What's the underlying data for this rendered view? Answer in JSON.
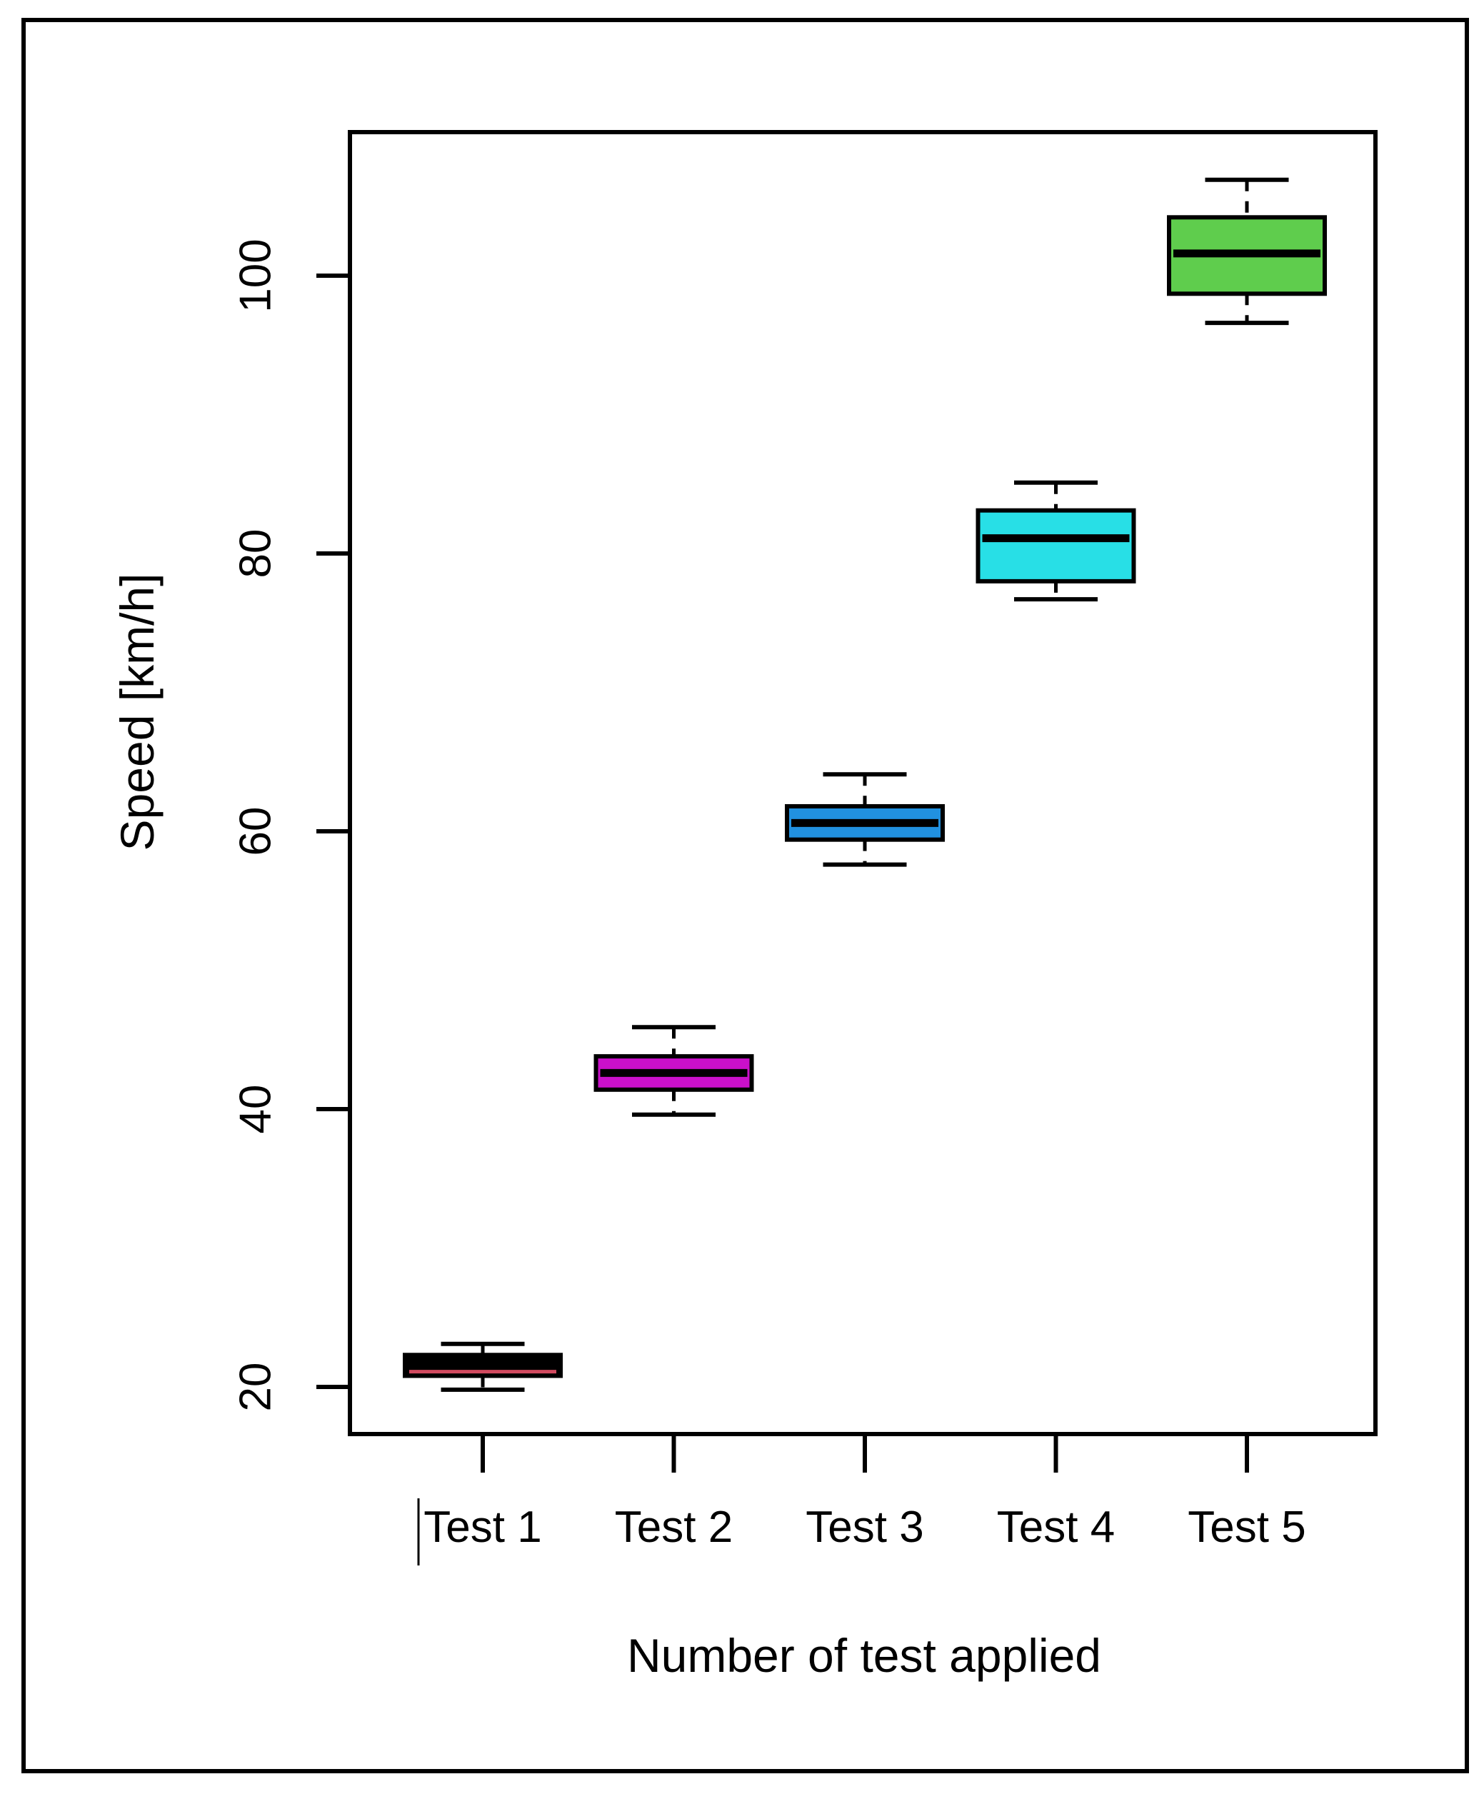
{
  "figure": {
    "background": "#ffffff",
    "outer_border_color": "#000000",
    "axis_color": "#000000"
  },
  "chart_data": {
    "type": "boxplot",
    "title": "",
    "xlabel": "Number of test applied",
    "ylabel": "Speed [km/h]",
    "categories": [
      "Test 1",
      "Test 2",
      "Test 3",
      "Test 4",
      "Test 5"
    ],
    "y_ticks": [
      20,
      40,
      60,
      80,
      100
    ],
    "ylim": [
      16.5,
      110.5
    ],
    "grid": false,
    "legend": "none",
    "series": [
      {
        "name": "Test 1",
        "whisker_low": 19.8,
        "q1": 20.8,
        "median": 21.1,
        "q3": 22.3,
        "whisker_high": 23.1,
        "box_fill": "#000000",
        "median_color": "#d24b60"
      },
      {
        "name": "Test 2",
        "whisker_low": 39.6,
        "q1": 41.4,
        "median": 42.6,
        "q3": 43.8,
        "whisker_high": 45.9,
        "box_fill": "#ca10ca",
        "median_color": "#000000"
      },
      {
        "name": "Test 3",
        "whisker_low": 57.6,
        "q1": 59.4,
        "median": 60.6,
        "q3": 61.8,
        "whisker_high": 64.1,
        "box_fill": "#2191e0",
        "median_color": "#000000"
      },
      {
        "name": "Test 4",
        "whisker_low": 76.7,
        "q1": 78.0,
        "median": 81.1,
        "q3": 83.1,
        "whisker_high": 85.1,
        "box_fill": "#28dfe6",
        "median_color": "#000000"
      },
      {
        "name": "Test 5",
        "whisker_low": 96.6,
        "q1": 98.7,
        "median": 101.6,
        "q3": 104.2,
        "whisker_high": 106.9,
        "box_fill": "#5fcd4d",
        "median_color": "#000000"
      }
    ]
  }
}
